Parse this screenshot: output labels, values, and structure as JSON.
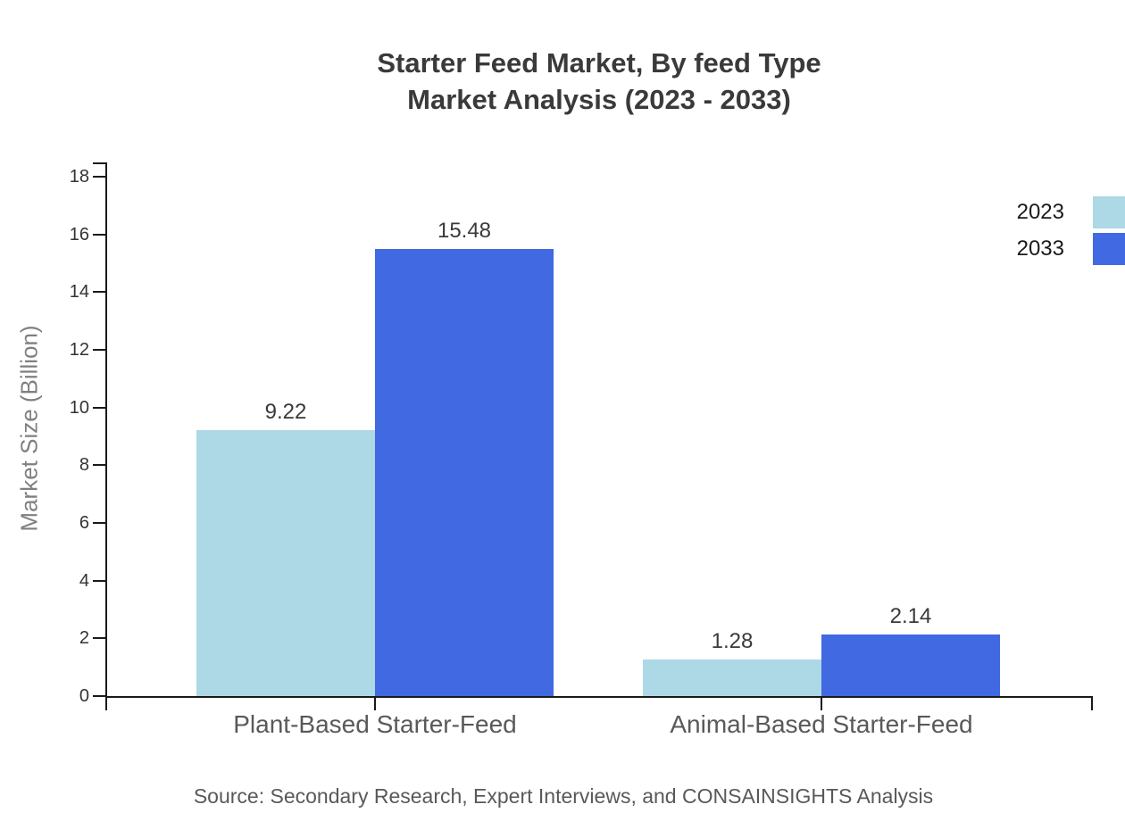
{
  "title": {
    "line1": "Starter Feed Market, By feed Type",
    "line2": "Market Analysis (2023 - 2033)"
  },
  "source_note": "Source: Secondary Research, Expert Interviews, and CONSAINSIGHTS Analysis",
  "chart_data": {
    "type": "bar",
    "title": "Starter Feed Market, By feed Type\nMarket Analysis (2023 - 2033)",
    "categories": [
      "Plant-Based Starter-Feed",
      "Animal-Based Starter-Feed"
    ],
    "series": [
      {
        "name": "2023",
        "color": "#ADD8E6",
        "values": [
          9.22,
          1.28
        ],
        "value_labels": [
          "9.22",
          "1.28"
        ]
      },
      {
        "name": "2033",
        "color": "#4169E1",
        "values": [
          15.48,
          2.14
        ],
        "value_labels": [
          "15.48",
          "2.14"
        ]
      }
    ],
    "xlabel": "",
    "ylabel": "Market Size (Billion)",
    "ylim": [
      0,
      18
    ],
    "ytick_step": 2,
    "yticks": [
      0,
      2,
      4,
      6,
      8,
      10,
      12,
      14,
      16,
      18
    ],
    "grid": false,
    "legend_position": "top-right",
    "value_labels_shown": true,
    "axis_color": "#1a1a1a"
  }
}
